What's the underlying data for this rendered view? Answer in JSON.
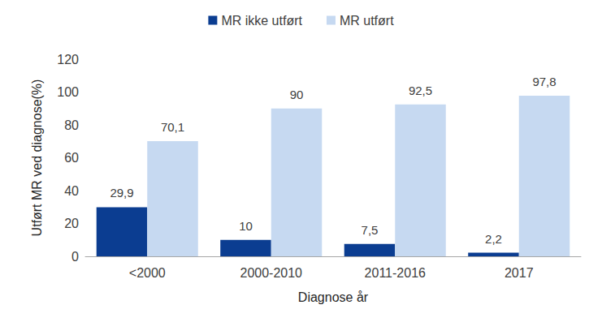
{
  "chart_data": {
    "type": "bar",
    "categories": [
      "<2000",
      "2000-2010",
      "2011-2016",
      "2017"
    ],
    "series": [
      {
        "name": "MR ikke utført",
        "color": "#0b3d91",
        "values": [
          29.9,
          10,
          7.5,
          2.2
        ],
        "value_labels": [
          "29,9",
          "10",
          "7,5",
          "2,2"
        ]
      },
      {
        "name": "MR utført",
        "color": "#c6d9f1",
        "values": [
          70.1,
          90,
          92.5,
          97.8
        ],
        "value_labels": [
          "70,1",
          "90",
          "92,5",
          "97,8"
        ]
      }
    ],
    "x_label": "Diagnose år",
    "y_label": "Utført MR ved diagnose(%)",
    "ylim": [
      0,
      120
    ],
    "yticks": [
      0,
      20,
      40,
      60,
      80,
      100,
      120
    ],
    "grid": false,
    "legend": "top",
    "data_labels": true
  }
}
